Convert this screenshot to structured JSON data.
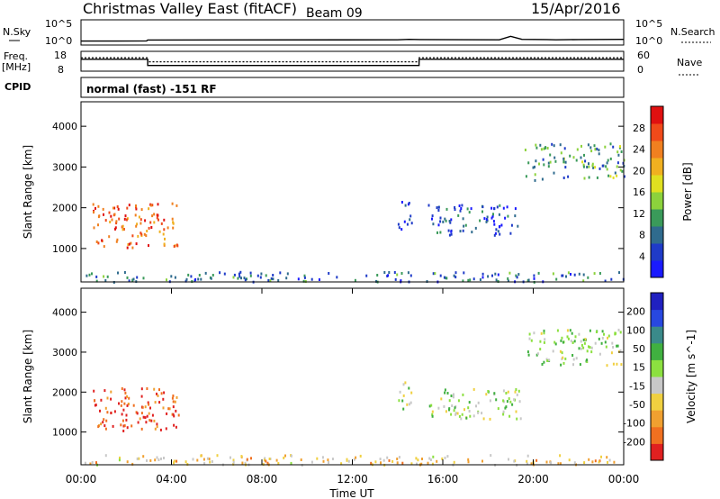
{
  "header": {
    "station": "Christmas Valley East (fitACF)",
    "beam": "Beam 09",
    "date": "15/Apr/2016"
  },
  "chart_data": [
    {
      "type": "line",
      "name": "noise-panel",
      "left_label": "N.Sky",
      "right_label": "N.Search",
      "left_ticks": [
        "10^5",
        "10^0"
      ],
      "right_ticks": [
        "10^5",
        "10^0"
      ],
      "x": [
        0,
        1.5,
        1.55,
        2.9,
        2.95,
        14,
        14.5,
        15,
        18.5,
        19,
        19.5,
        20.6,
        21,
        22,
        24
      ],
      "n_sky": [
        0.5,
        0.5,
        0.5,
        0.55,
        0.75,
        0.8,
        0.9,
        0.85,
        0.8,
        1.6,
        0.9,
        0.85,
        0.8,
        0.85,
        0.9
      ]
    },
    {
      "type": "line",
      "name": "frequency-panel",
      "left_label_top": "Freq.",
      "left_label_bottom": "[MHz]",
      "right_label": "Nave",
      "left_ticks": [
        "18",
        "8"
      ],
      "right_ticks": [
        "60",
        "0"
      ],
      "freq_x": [
        0,
        2.95,
        2.95,
        14.95,
        14.95,
        24
      ],
      "freq": [
        14.2,
        14.2,
        10.4,
        10.4,
        14.2,
        14.2
      ],
      "nave_x": [
        0,
        2.95,
        2.95,
        14.95,
        14.95,
        24
      ],
      "nave": [
        43,
        43,
        28,
        28,
        43,
        43
      ]
    },
    {
      "type": "table",
      "name": "cpid-panel",
      "label": "CPID",
      "mode_text": "normal (fast) -151 RF"
    },
    {
      "type": "heatmap",
      "name": "power-panel",
      "ylabel": "Slant Range [km]",
      "yticks": [
        "1000",
        "2000",
        "3000",
        "4000"
      ],
      "ylim": [
        180,
        4600
      ],
      "colorbar": {
        "label": "Power [dB]",
        "ticks": [
          "4",
          "8",
          "12",
          "16",
          "20",
          "24",
          "28"
        ],
        "colors": [
          "#1a1aff",
          "#1f3bc8",
          "#2f6b8e",
          "#3a9a5a",
          "#8cd23c",
          "#e0e020",
          "#f0b020",
          "#f08020",
          "#f04a1a",
          "#e01010"
        ]
      },
      "clusters": [
        {
          "t0": 0.5,
          "t1": 4.3,
          "r0": 1050,
          "r1": 2150,
          "level": 0.8
        },
        {
          "t0": 14.0,
          "t1": 14.6,
          "r0": 1500,
          "r1": 2300,
          "level": 0.15
        },
        {
          "t0": 15.3,
          "t1": 19.5,
          "r0": 1350,
          "r1": 2100,
          "level": 0.2
        },
        {
          "t0": 19.6,
          "t1": 24.0,
          "r0": 2700,
          "r1": 3600,
          "level": 0.35
        },
        {
          "t0": 0.0,
          "t1": 24.0,
          "r0": 200,
          "r1": 450,
          "level": 0.25
        }
      ]
    },
    {
      "type": "heatmap",
      "name": "velocity-panel",
      "ylabel": "Slant Range [km]",
      "yticks": [
        "1000",
        "2000",
        "3000",
        "4000"
      ],
      "ylim": [
        180,
        4600
      ],
      "xlabel": "Time UT",
      "xticks": [
        "00:00",
        "04:00",
        "08:00",
        "12:00",
        "16:00",
        "20:00",
        "00:00"
      ],
      "xlim": [
        0,
        24
      ],
      "colorbar": {
        "label": "Velocity [m s^-1]",
        "ticks": [
          "200",
          "100",
          "50",
          "15",
          "-15",
          "-50",
          "-100",
          "-200"
        ],
        "colors": [
          "#2020c0",
          "#2848e0",
          "#3a8a8a",
          "#40b040",
          "#8ce040",
          "#c8c8c8",
          "#f0d040",
          "#f0a030",
          "#f07020",
          "#e02020"
        ]
      },
      "clusters": [
        {
          "t0": 0.5,
          "t1": 4.3,
          "r0": 1050,
          "r1": 2150,
          "level": 0.1
        },
        {
          "t0": 14.0,
          "t1": 14.6,
          "r0": 1500,
          "r1": 2300,
          "level": 0.5
        },
        {
          "t0": 15.3,
          "t1": 19.5,
          "r0": 1350,
          "r1": 2100,
          "level": 0.5
        },
        {
          "t0": 19.6,
          "t1": 24.0,
          "r0": 2700,
          "r1": 3600,
          "level": 0.5
        },
        {
          "t0": 0.0,
          "t1": 24.0,
          "r0": 200,
          "r1": 450,
          "level": 0.35
        }
      ]
    }
  ]
}
